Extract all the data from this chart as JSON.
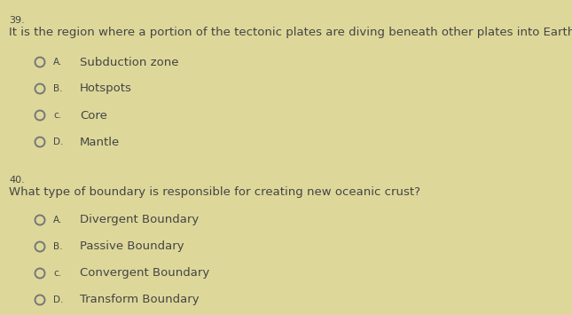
{
  "background_color": "#ddd89a",
  "q39_number": "39.",
  "q39_text": "It is the region where a portion of the tectonic plates are diving beneath other plates into Earth’s interior.",
  "q39_options": [
    {
      "label": "A.",
      "text": "Subduction zone"
    },
    {
      "label": "B.",
      "text": "Hotspots"
    },
    {
      "label": "c.",
      "text": "Core"
    },
    {
      "label": "D.",
      "text": "Mantle"
    }
  ],
  "q40_number": "40.",
  "q40_text": "What type of boundary is responsible for creating new oceanic crust?",
  "q40_options": [
    {
      "label": "A.",
      "text": "Divergent Boundary"
    },
    {
      "label": "B.",
      "text": "Passive Boundary"
    },
    {
      "label": "c.",
      "text": "Convergent Boundary"
    },
    {
      "label": "D.",
      "text": "Transform Boundary"
    }
  ],
  "text_color": "#444444",
  "circle_edge_color": "#777777",
  "number_fontsize": 8,
  "question_fontsize": 9.5,
  "option_fontsize": 9.5,
  "option_label_fontsize": 7.5
}
